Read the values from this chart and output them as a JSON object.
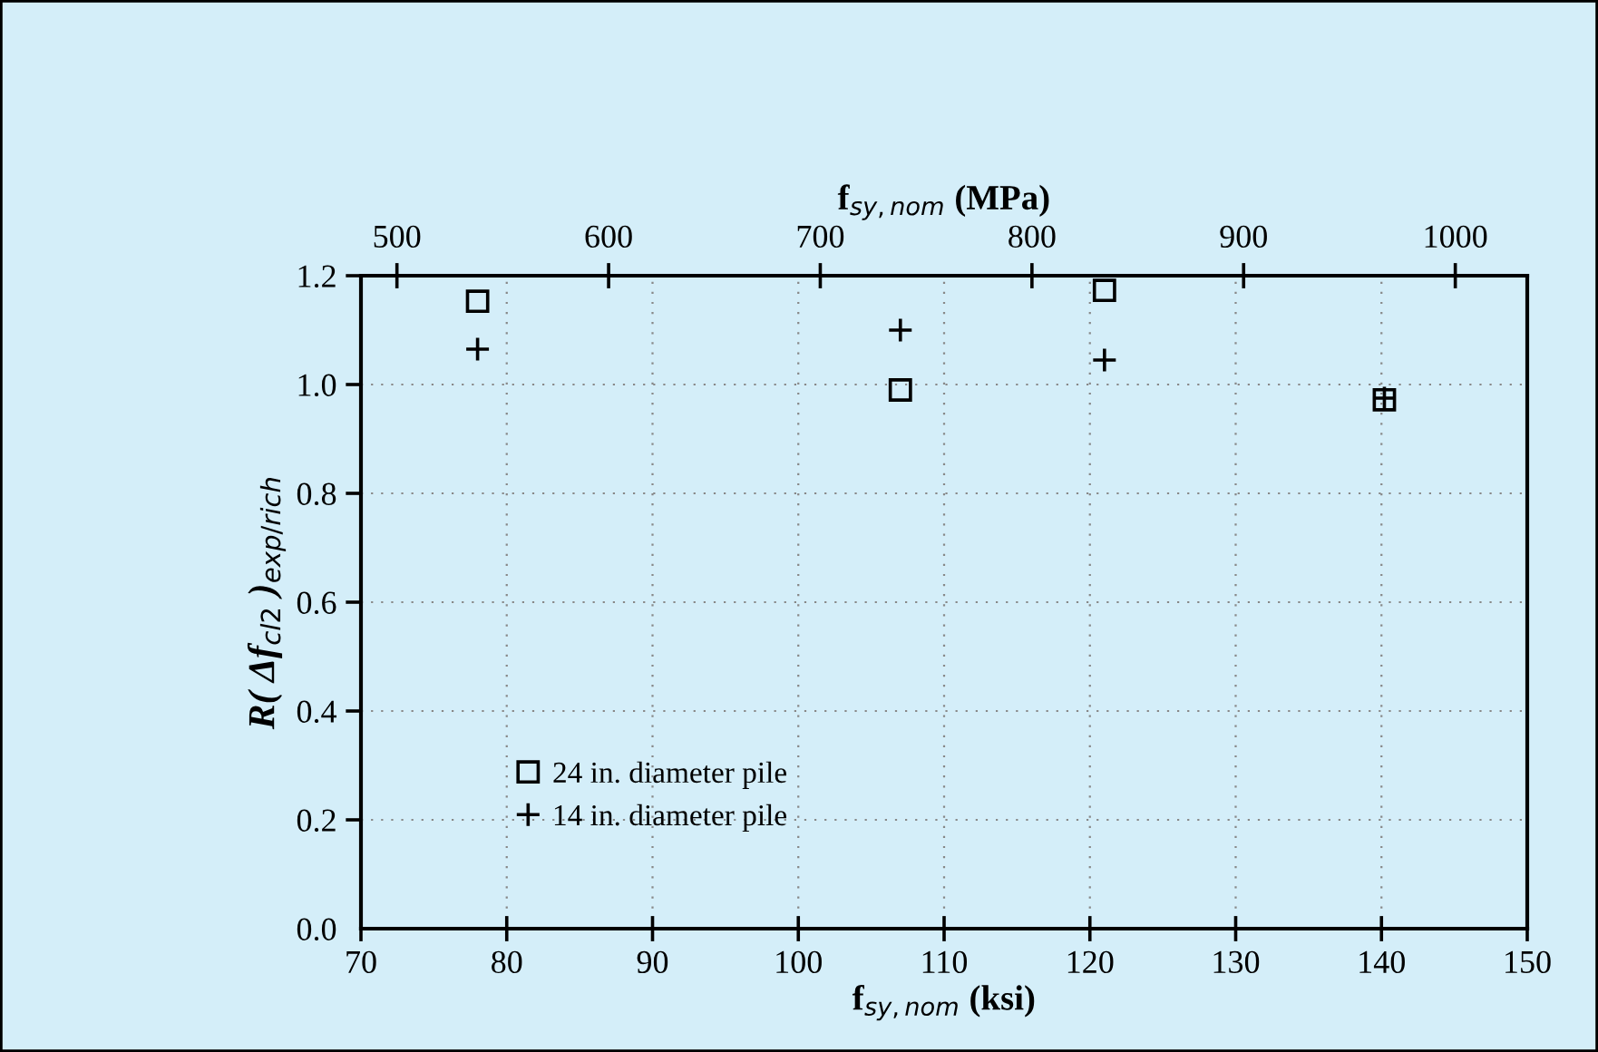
{
  "chart_data": {
    "type": "scatter",
    "xlabel": "f$_{sy,nom}$ (ksi)",
    "x2label": "f$_{sy,nom}$ (MPa)",
    "ylabel": "R( Δf$_{cl2}$ )$_{exp/rich}$",
    "series": [
      {
        "name": "24 in. diameter pile",
        "color": "#000000",
        "marker": "square",
        "x": [
          78,
          107,
          121,
          140.2
        ],
        "values": [
          1.153,
          0.99,
          1.173,
          0.972
        ]
      },
      {
        "name": "14 in. diameter pile",
        "color": "#000000",
        "marker": "cross",
        "x": [
          78,
          107,
          121,
          140.2
        ],
        "values": [
          1.065,
          1.1,
          1.045,
          0.975
        ]
      }
    ],
    "xlim": [
      70,
      150
    ],
    "xticks": [
      70,
      80,
      90,
      100,
      110,
      120,
      130,
      140,
      150
    ],
    "x2lim": [
      483,
      1034
    ],
    "x2ticks": [
      500,
      600,
      700,
      800,
      900,
      1000
    ],
    "ylim": [
      0,
      1.2
    ],
    "yticks": [
      {
        "value": 0,
        "label": "0.0"
      },
      0.2,
      0.4,
      0.6,
      0.8,
      {
        "value": 1.0,
        "label": "1.0"
      },
      1.2
    ],
    "grid": true,
    "legend": "bottom left"
  }
}
